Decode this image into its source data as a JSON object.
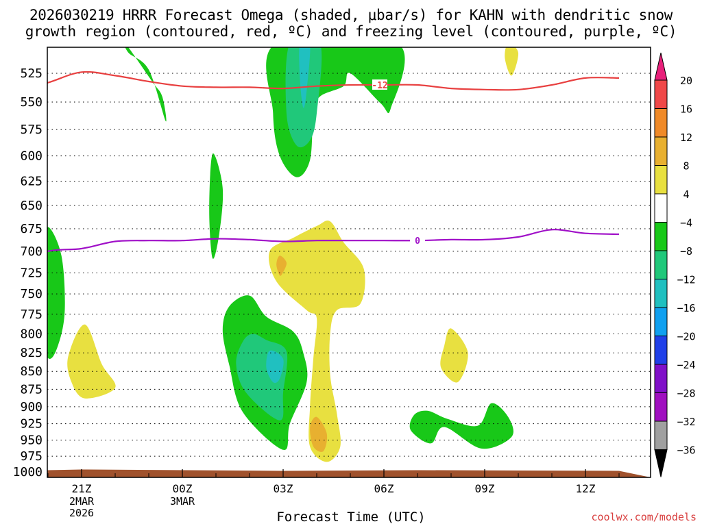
{
  "title": {
    "line1": "2026030219 HRRR Forecast Omega (shaded, μbar/s) for KAHN with dendritic snow",
    "line2": "growth region (contoured, red, ºC) and freezing level (contoured, purple, ºC)"
  },
  "credit": "coolwx.com/models",
  "chart_data": {
    "type": "time-height contour",
    "xlabel": "Forecast Time (UTC)",
    "x_range_hours_from_19Z": [
      0,
      18
    ],
    "x_ticks": [
      {
        "hour": 2,
        "label": "21Z",
        "sub": [
          "2MAR",
          "2026"
        ]
      },
      {
        "hour": 5,
        "label": "00Z",
        "sub": [
          "3MAR"
        ]
      },
      {
        "hour": 8,
        "label": "03Z",
        "sub": []
      },
      {
        "hour": 11,
        "label": "06Z",
        "sub": []
      },
      {
        "hour": 14,
        "label": "09Z",
        "sub": []
      },
      {
        "hour": 17,
        "label": "12Z",
        "sub": []
      }
    ],
    "y_axis": "pressure (hPa), log scale, decreasing upward",
    "y_range": [
      1000,
      500
    ],
    "y_ticks": [
      525,
      550,
      575,
      600,
      625,
      650,
      675,
      700,
      725,
      750,
      775,
      800,
      825,
      850,
      875,
      900,
      925,
      950,
      975,
      1000
    ],
    "colorbar": {
      "units": "μbar/s",
      "levels": [
        "20",
        "16",
        "12",
        "8",
        "4",
        "−4",
        "−8",
        "−12",
        "−16",
        "−20",
        "−24",
        "−28",
        "−32",
        "−36"
      ],
      "colors": [
        "#e8207a",
        "#f04848",
        "#f08a28",
        "#e8b030",
        "#e8e040",
        "#ffffff",
        "#18c818",
        "#20c87a",
        "#20c0c0",
        "#10a0f0",
        "#2040e8",
        "#8010c8",
        "#a010c0",
        "#a0a0a0",
        "#000000"
      ]
    },
    "contours": {
      "dgz_line": {
        "label": "-12",
        "color": "#e84040",
        "points": [
          [
            0,
            541
          ],
          [
            1,
            533
          ],
          [
            2,
            524
          ],
          [
            3,
            527
          ],
          [
            4,
            532
          ],
          [
            5,
            536
          ],
          [
            6,
            537
          ],
          [
            7,
            537
          ],
          [
            8,
            538
          ],
          [
            9,
            536
          ],
          [
            10,
            535
          ],
          [
            11,
            535
          ],
          [
            12,
            535
          ],
          [
            13,
            538
          ],
          [
            14,
            539
          ],
          [
            15,
            539
          ],
          [
            16,
            535
          ],
          [
            17,
            529
          ],
          [
            18,
            529
          ]
        ]
      },
      "freezing_line": {
        "label": "0",
        "color": "#a010c8",
        "points": [
          [
            0,
            714
          ],
          [
            1,
            700
          ],
          [
            2,
            697
          ],
          [
            3,
            689
          ],
          [
            4,
            688
          ],
          [
            5,
            688
          ],
          [
            6,
            686
          ],
          [
            7,
            687
          ],
          [
            8,
            689
          ],
          [
            9,
            688
          ],
          [
            10,
            688
          ],
          [
            11,
            688
          ],
          [
            12,
            688
          ],
          [
            13,
            687
          ],
          [
            14,
            687
          ],
          [
            15,
            684
          ],
          [
            16,
            676
          ],
          [
            17,
            680
          ],
          [
            18,
            681
          ]
        ]
      }
    },
    "omega_regions": [
      {
        "level": "-8",
        "color": "#18c818",
        "polygon": [
          [
            3.3,
            500
          ],
          [
            4.1,
            532
          ],
          [
            4.4,
            545
          ],
          [
            4.5,
            567
          ],
          [
            4.0,
            522
          ],
          [
            3.4,
            508
          ]
        ]
      },
      {
        "level": "-8",
        "color": "#18c818",
        "polygon": [
          [
            7.8,
            500
          ],
          [
            11.4,
            500
          ],
          [
            11.2,
            556
          ],
          [
            10.9,
            551
          ],
          [
            10.0,
            525
          ],
          [
            9.8,
            536
          ],
          [
            9.1,
            545
          ],
          [
            8.9,
            560
          ],
          [
            8.8,
            604
          ],
          [
            8.4,
            621
          ],
          [
            7.9,
            600
          ],
          [
            7.7,
            560
          ]
        ]
      },
      {
        "level": "-12",
        "color": "#20c87a",
        "polygon": [
          [
            8.2,
            500
          ],
          [
            9.1,
            500
          ],
          [
            9.0,
            560
          ],
          [
            8.8,
            585
          ],
          [
            8.4,
            590
          ],
          [
            8.1,
            560
          ]
        ]
      },
      {
        "level": "-16",
        "color": "#20c0c0",
        "polygon": [
          [
            8.5,
            500
          ],
          [
            8.8,
            500
          ],
          [
            8.7,
            540
          ],
          [
            8.6,
            555
          ],
          [
            8.5,
            530
          ]
        ]
      },
      {
        "level": "-8",
        "color": "#18c818",
        "polygon": [
          [
            5.9,
            598
          ],
          [
            6.2,
            632
          ],
          [
            6.1,
            680
          ],
          [
            5.9,
            708
          ],
          [
            5.8,
            655
          ]
        ]
      },
      {
        "level": "-8",
        "color": "#18c818",
        "polygon": [
          [
            1.0,
            673
          ],
          [
            1.4,
            705
          ],
          [
            1.5,
            770
          ],
          [
            1.3,
            815
          ],
          [
            1.0,
            832
          ],
          [
            0.6,
            790
          ],
          [
            0.5,
            745
          ],
          [
            0.8,
            700
          ]
        ]
      },
      {
        "level": "-8",
        "color": "#18c818",
        "polygon": [
          [
            7.0,
            752
          ],
          [
            7.5,
            778
          ],
          [
            8.3,
            797
          ],
          [
            8.6,
            825
          ],
          [
            8.7,
            865
          ],
          [
            8.2,
            925
          ],
          [
            8.0,
            965
          ],
          [
            6.8,
            908
          ],
          [
            6.4,
            842
          ],
          [
            6.2,
            795
          ],
          [
            6.4,
            765
          ]
        ]
      },
      {
        "level": "-12",
        "color": "#20c87a",
        "polygon": [
          [
            7.1,
            800
          ],
          [
            7.5,
            808
          ],
          [
            8.1,
            823
          ],
          [
            8.0,
            880
          ],
          [
            7.9,
            920
          ],
          [
            6.9,
            880
          ],
          [
            6.6,
            840
          ],
          [
            6.8,
            810
          ]
        ]
      },
      {
        "level": "-16",
        "color": "#20c0c0",
        "polygon": [
          [
            7.6,
            822
          ],
          [
            8.0,
            833
          ],
          [
            7.9,
            860
          ],
          [
            7.7,
            865
          ],
          [
            7.5,
            845
          ]
        ]
      },
      {
        "level": "-8",
        "color": "#18c818",
        "polygon": [
          [
            12.3,
            906
          ],
          [
            12.9,
            918
          ],
          [
            13.8,
            928
          ],
          [
            14.2,
            895
          ],
          [
            14.7,
            915
          ],
          [
            14.8,
            945
          ],
          [
            13.9,
            963
          ],
          [
            12.8,
            930
          ],
          [
            12.4,
            955
          ],
          [
            11.8,
            935
          ],
          [
            11.9,
            912
          ]
        ]
      },
      {
        "level": "4",
        "color": "#e8e040",
        "polygon": [
          [
            9.4,
            667
          ],
          [
            9.8,
            690
          ],
          [
            10.4,
            720
          ],
          [
            10.3,
            762
          ],
          [
            9.6,
            770
          ],
          [
            9.4,
            800
          ],
          [
            9.4,
            855
          ],
          [
            9.6,
            910
          ],
          [
            9.7,
            960
          ],
          [
            9.3,
            984
          ],
          [
            8.8,
            960
          ],
          [
            8.8,
            900
          ],
          [
            8.9,
            832
          ],
          [
            9.0,
            780
          ],
          [
            8.7,
            770
          ],
          [
            7.8,
            735
          ],
          [
            7.6,
            700
          ],
          [
            8.3,
            685
          ],
          [
            9.0,
            672
          ]
        ]
      },
      {
        "level": "8",
        "color": "#e8b030",
        "polygon": [
          [
            7.9,
            705
          ],
          [
            8.1,
            713
          ],
          [
            8.0,
            724
          ],
          [
            7.9,
            728
          ],
          [
            7.8,
            715
          ]
        ]
      },
      {
        "level": "8",
        "color": "#e8b030",
        "polygon": [
          [
            9.0,
            915
          ],
          [
            9.3,
            940
          ],
          [
            9.2,
            967
          ],
          [
            8.9,
            960
          ],
          [
            8.8,
            930
          ]
        ]
      },
      {
        "level": "4",
        "color": "#e8e040",
        "polygon": [
          [
            2.1,
            788
          ],
          [
            2.6,
            840
          ],
          [
            3.0,
            873
          ],
          [
            2.1,
            888
          ],
          [
            1.7,
            865
          ],
          [
            1.6,
            830
          ]
        ]
      },
      {
        "level": "4",
        "color": "#e8e040",
        "polygon": [
          [
            13.0,
            793
          ],
          [
            13.5,
            825
          ],
          [
            13.2,
            865
          ],
          [
            12.7,
            845
          ],
          [
            12.8,
            815
          ]
        ]
      },
      {
        "level": "4",
        "color": "#e8e040",
        "polygon": [
          [
            14.7,
            500
          ],
          [
            15.0,
            508
          ],
          [
            14.8,
            527
          ],
          [
            14.6,
            512
          ]
        ]
      }
    ],
    "terrain": {
      "color": "#a0522d",
      "top_hpa": 995
    }
  }
}
